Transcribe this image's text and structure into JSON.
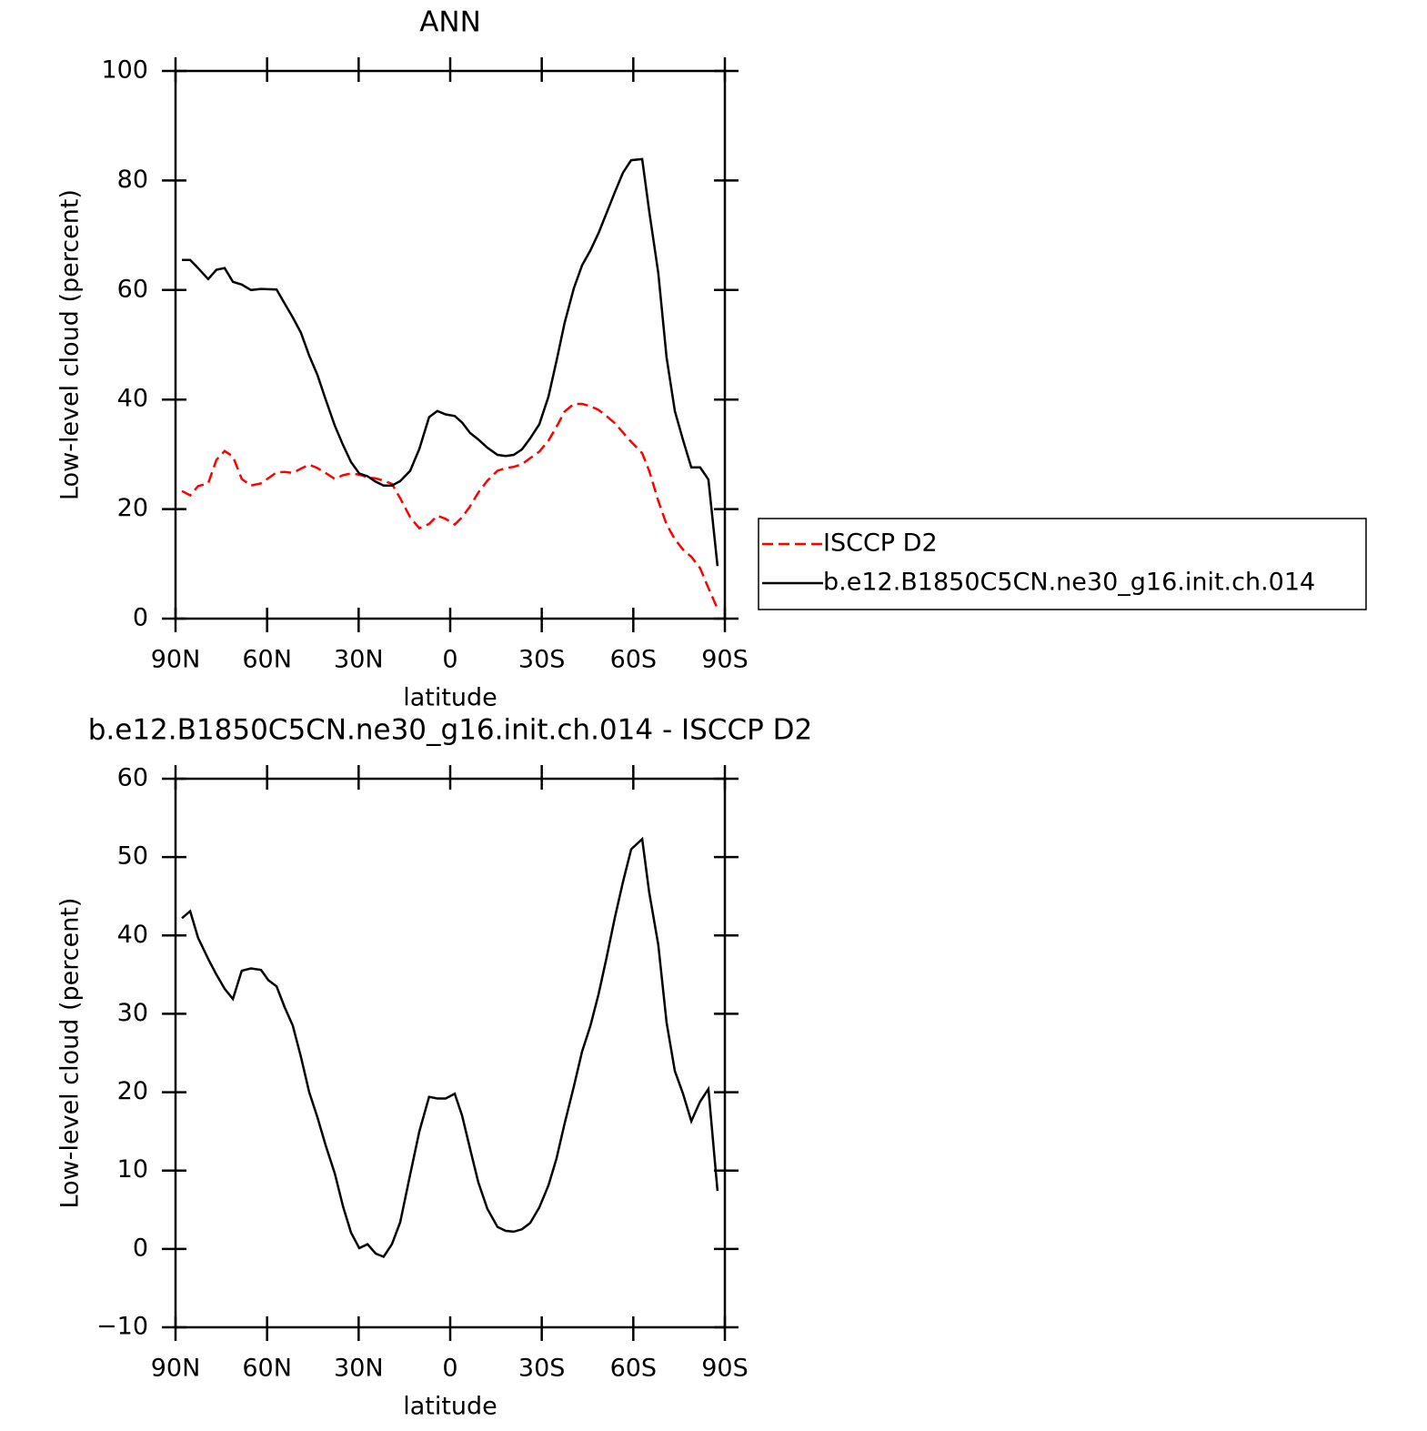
{
  "chart_data": [
    {
      "type": "line",
      "title": "ANN",
      "x_label": "latitude",
      "y_label": "Low-level cloud (percent)",
      "x": [
        87.9,
        85.2,
        82.6,
        79.3,
        76.6,
        73.9,
        71.2,
        68.3,
        65.3,
        62.0,
        56.9,
        54.2,
        51.6,
        48.9,
        46.2,
        43.5,
        40.8,
        37.8,
        35.1,
        32.5,
        29.8,
        27.1,
        24.4,
        21.8,
        19.1,
        16.4,
        13.1,
        10.1,
        6.9,
        4.2,
        1.5,
        -1.5,
        -3.9,
        -6.5,
        -9.2,
        -12.2,
        -15.5,
        -18.2,
        -20.8,
        -23.5,
        -26.2,
        -29.2,
        -32.2,
        -34.8,
        -37.5,
        -40.5,
        -43.2,
        -45.9,
        -48.6,
        -51.2,
        -53.9,
        -56.6,
        -59.3,
        -62.9,
        -65.2,
        -68.2,
        -70.9,
        -73.6,
        -76.3,
        -79.0,
        -81.9,
        -84.6,
        -87.6
      ],
      "series": [
        {
          "name": "ISCCP D2",
          "color": "#ff0000",
          "dash": true,
          "values": [
            23.3,
            22.5,
            24.2,
            24.7,
            29,
            30.6,
            29.6,
            25.5,
            24.3,
            24.7,
            26.7,
            26.8,
            26.6,
            27.4,
            28.1,
            27.5,
            26.6,
            25.5,
            26.2,
            26.5,
            26.3,
            25.8,
            25.6,
            25.2,
            24.6,
            22,
            18.5,
            16.5,
            17.3,
            18.8,
            18.2,
            17.2,
            18.5,
            20.5,
            23,
            25.2,
            27,
            27.5,
            27.7,
            28.2,
            29.3,
            30.5,
            32.5,
            35,
            37.8,
            39.2,
            39.2,
            38.8,
            38.1,
            37,
            35.7,
            34,
            32.3,
            30.2,
            27,
            21.5,
            17.2,
            14.5,
            12.6,
            11.3,
            9.2,
            5.6,
            1.8
          ]
        },
        {
          "name": "b.e12.B1850C5CN.ne30_g16.init.ch.014",
          "color": "#000000",
          "dash": false,
          "values": [
            65.5,
            65.5,
            64,
            62,
            63.7,
            64,
            61.5,
            61,
            60,
            60.2,
            60.1,
            57.5,
            55,
            52.2,
            48,
            44.5,
            40,
            35.2,
            31.7,
            28.6,
            26.5,
            26,
            25,
            24.3,
            24.3,
            25.1,
            27,
            31,
            36.8,
            37.9,
            37.3,
            37,
            35.8,
            33.9,
            32.7,
            31.2,
            29.9,
            29.7,
            29.9,
            30.9,
            32.9,
            35.5,
            40.5,
            47,
            54,
            60.3,
            64.5,
            67.2,
            70.4,
            74,
            77.8,
            81.4,
            83.7,
            83.9,
            74.4,
            63.1,
            47.7,
            37.9,
            32.6,
            27.6,
            27.6,
            25.4,
            9.6
          ]
        }
      ],
      "xlim": [
        90,
        -90
      ],
      "xticks": [
        {
          "value": 90,
          "label": "90N"
        },
        {
          "value": 60,
          "label": "60N"
        },
        {
          "value": 30,
          "label": "30N"
        },
        0,
        {
          "value": -30,
          "label": "30S"
        },
        {
          "value": -60,
          "label": "60S"
        },
        {
          "value": -90,
          "label": "90S"
        }
      ],
      "ylim": [
        0,
        100
      ],
      "yticks": [
        0,
        20,
        40,
        60,
        80,
        100
      ],
      "legend": "right"
    },
    {
      "type": "line",
      "title": "b.e12.B1850C5CN.ne30_g16.init.ch.014 - ISCCP D2",
      "x_label": "latitude",
      "y_label": "Low-level cloud (percent)",
      "x": [
        87.9,
        85.2,
        82.6,
        79.3,
        76.6,
        73.9,
        71.2,
        68.3,
        65.3,
        62.0,
        59.6,
        56.9,
        54.2,
        51.6,
        48.9,
        46.2,
        43.5,
        40.8,
        37.8,
        35.1,
        32.5,
        29.8,
        27.1,
        24.4,
        21.8,
        19.1,
        16.4,
        13.1,
        10.1,
        6.9,
        4.2,
        1.5,
        -1.5,
        -3.9,
        -6.5,
        -9.2,
        -12.2,
        -15.5,
        -18.2,
        -20.8,
        -23.5,
        -26.2,
        -29.2,
        -32.2,
        -34.8,
        -37.5,
        -40.5,
        -43.2,
        -45.9,
        -48.6,
        -51.2,
        -53.9,
        -56.6,
        -59.3,
        -62.9,
        -65.2,
        -68.2,
        -70.9,
        -73.6,
        -76.3,
        -79.0,
        -81.9,
        -84.6,
        -87.6
      ],
      "values": [
        42.2,
        43.1,
        39.7,
        37.0,
        35.0,
        33.2,
        31.9,
        35.5,
        35.8,
        35.6,
        34.3,
        33.5,
        30.8,
        28.5,
        24.5,
        20,
        16.8,
        13.2,
        9.6,
        5.4,
        2.1,
        0.1,
        0.6,
        -0.6,
        -1.0,
        0.6,
        3.4,
        9.5,
        15,
        19.4,
        19.2,
        19.2,
        19.8,
        17,
        12.8,
        8.5,
        5.1,
        2.8,
        2.3,
        2.2,
        2.5,
        3.3,
        5.3,
        8.1,
        11.5,
        16,
        20.7,
        25.2,
        28.4,
        32.5,
        37.1,
        42.2,
        46.8,
        51.0,
        52.3,
        45.5,
        38.8,
        28.9,
        22.7,
        19.8,
        16.3,
        18.8,
        20.4,
        7.4
      ],
      "color": "#000000",
      "xlim": [
        90,
        -90
      ],
      "xticks": [
        {
          "value": 90,
          "label": "90N"
        },
        {
          "value": 60,
          "label": "60N"
        },
        {
          "value": 30,
          "label": "30N"
        },
        0,
        {
          "value": -30,
          "label": "30S"
        },
        {
          "value": -60,
          "label": "60S"
        },
        {
          "value": -90,
          "label": "90S"
        }
      ],
      "ylim": [
        -10,
        60
      ],
      "yticks": [
        {
          "value": -10,
          "label": "−10"
        },
        0,
        10,
        20,
        30,
        40,
        50,
        60
      ]
    }
  ]
}
